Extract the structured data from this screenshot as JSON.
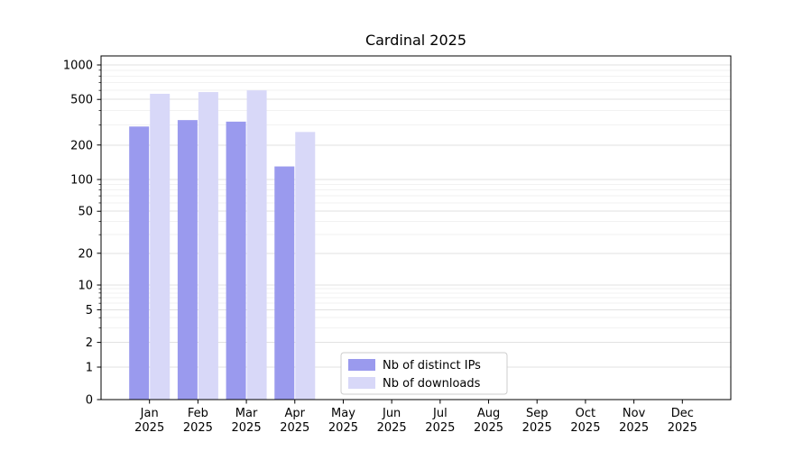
{
  "title": "Cardinal 2025",
  "legend": {
    "items": [
      {
        "label": "Nb of distinct IPs",
        "color": "#9a9aee"
      },
      {
        "label": "Nb of downloads",
        "color": "#d8d8f8"
      }
    ]
  },
  "chart_data": {
    "type": "bar",
    "title": "Cardinal 2025",
    "categories": [
      "Jan 2025",
      "Feb 2025",
      "Mar 2025",
      "Apr 2025",
      "May 2025",
      "Jun 2025",
      "Jul 2025",
      "Aug 2025",
      "Sep 2025",
      "Oct 2025",
      "Nov 2025",
      "Dec 2025"
    ],
    "series": [
      {
        "name": "Nb of distinct IPs",
        "color": "#9a9aee",
        "values": [
          290,
          330,
          320,
          130,
          0,
          0,
          0,
          0,
          0,
          0,
          0,
          0
        ]
      },
      {
        "name": "Nb of downloads",
        "color": "#d8d8f8",
        "values": [
          560,
          580,
          600,
          260,
          0,
          0,
          0,
          0,
          0,
          0,
          0,
          0
        ]
      }
    ],
    "yscale": "symlog",
    "yticks": [
      0,
      1,
      2,
      5,
      10,
      20,
      50,
      100,
      200,
      500,
      1000
    ],
    "yticks_minor": [
      3,
      4,
      6,
      7,
      8,
      9,
      30,
      40,
      60,
      70,
      80,
      90,
      300,
      400,
      600,
      700,
      800,
      900
    ],
    "ylim": [
      0,
      1258
    ],
    "xlabel": "",
    "ylabel": "",
    "grid": true,
    "legend_position": "lower center"
  }
}
